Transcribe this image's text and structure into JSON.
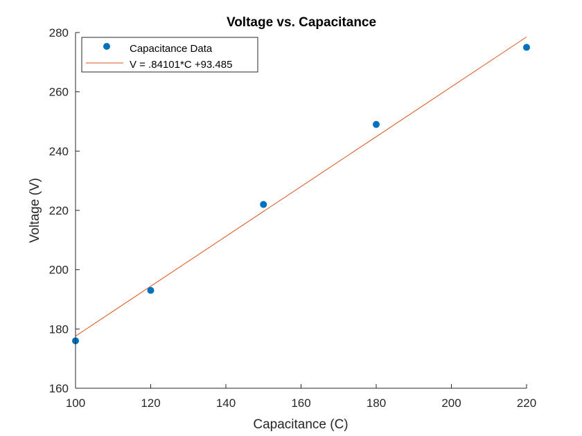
{
  "chart_data": {
    "type": "scatter",
    "title": "Voltage vs. Capacitance",
    "xlabel": "Capacitance (C)",
    "ylabel": "Voltage (V)",
    "xlim": [
      100,
      220
    ],
    "ylim": [
      160,
      280
    ],
    "xticks": [
      100,
      120,
      140,
      160,
      180,
      200,
      220
    ],
    "yticks": [
      160,
      180,
      200,
      220,
      240,
      260,
      280
    ],
    "grid": false,
    "legend_position": "top-left",
    "series": [
      {
        "name": "Capacitance Data",
        "kind": "scatter",
        "color": "#0072BD",
        "x": [
          100,
          120,
          150,
          180,
          220
        ],
        "y": [
          176,
          193,
          222,
          249,
          275
        ]
      },
      {
        "name": "V = .84101*C +93.485",
        "kind": "line",
        "color": "#D95319",
        "x": [
          100,
          220
        ],
        "y": [
          177.586,
          278.507
        ]
      }
    ]
  }
}
